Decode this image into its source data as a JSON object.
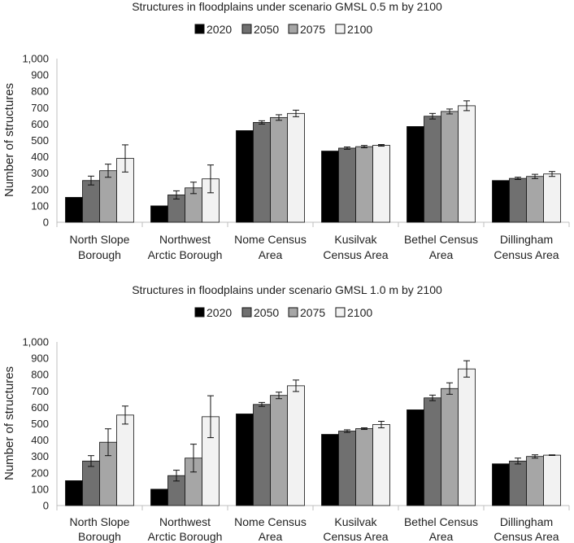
{
  "colors": {
    "2020": "#000000",
    "2050": "#707070",
    "2075": "#a6a6a6",
    "2100": "#f2f2f2",
    "bar_stroke": "#111111",
    "axis": "#bfbfbf",
    "text": "#222222"
  },
  "chart_data": [
    {
      "type": "bar",
      "title": "Structures in floodplains under scenario GMSL 0.5 m by 2100",
      "xlabel": "",
      "ylabel": "Number of structures",
      "ylim": [
        0,
        1000
      ],
      "yticks": [
        "0",
        "100",
        "200",
        "300",
        "400",
        "500",
        "600",
        "700",
        "800",
        "900",
        "1,000"
      ],
      "legend_position": "top-center",
      "categories": [
        [
          "North Slope",
          "Borough"
        ],
        [
          "Northwest",
          "Arctic Borough"
        ],
        [
          "Nome Census",
          "Area"
        ],
        [
          "Kusilvak",
          "Census Area"
        ],
        [
          "Bethel Census",
          "Area"
        ],
        [
          "Dillingham",
          "Census Area"
        ]
      ],
      "series": [
        {
          "name": "2020",
          "values": [
            152,
            100,
            560,
            435,
            585,
            255
          ],
          "errors": [
            0,
            0,
            0,
            0,
            0,
            0
          ]
        },
        {
          "name": "2050",
          "values": [
            255,
            167,
            610,
            453,
            648,
            268
          ],
          "errors": [
            27,
            25,
            10,
            7,
            17,
            7
          ]
        },
        {
          "name": "2075",
          "values": [
            315,
            210,
            640,
            462,
            677,
            280
          ],
          "errors": [
            40,
            35,
            17,
            7,
            15,
            13
          ]
        },
        {
          "name": "2100",
          "values": [
            390,
            265,
            665,
            470,
            712,
            295
          ],
          "errors": [
            83,
            85,
            20,
            5,
            30,
            15
          ]
        }
      ]
    },
    {
      "type": "bar",
      "title": "Structures in floodplains under scenario GMSL 1.0 m by 2100",
      "xlabel": "",
      "ylabel": "Number of structures",
      "ylim": [
        0,
        1000
      ],
      "yticks": [
        "0",
        "100",
        "200",
        "300",
        "400",
        "500",
        "600",
        "700",
        "800",
        "900",
        "1,000"
      ],
      "legend_position": "top-center",
      "categories": [
        [
          "North Slope",
          "Borough"
        ],
        [
          "Northwest",
          "Arctic Borough"
        ],
        [
          "Nome Census",
          "Area"
        ],
        [
          "Kusilvak",
          "Census Area"
        ],
        [
          "Bethel Census",
          "Area"
        ],
        [
          "Dillingham",
          "Census Area"
        ]
      ],
      "series": [
        {
          "name": "2020",
          "values": [
            152,
            100,
            560,
            435,
            585,
            255
          ],
          "errors": [
            0,
            0,
            0,
            0,
            0,
            0
          ]
        },
        {
          "name": "2050",
          "values": [
            272,
            183,
            618,
            455,
            658,
            272
          ],
          "errors": [
            33,
            33,
            12,
            8,
            17,
            18
          ]
        },
        {
          "name": "2075",
          "values": [
            387,
            290,
            673,
            470,
            715,
            300
          ],
          "errors": [
            82,
            85,
            20,
            5,
            35,
            10
          ]
        },
        {
          "name": "2100",
          "values": [
            553,
            543,
            732,
            495,
            835,
            308
          ],
          "errors": [
            55,
            128,
            35,
            20,
            50,
            2
          ]
        }
      ]
    }
  ]
}
